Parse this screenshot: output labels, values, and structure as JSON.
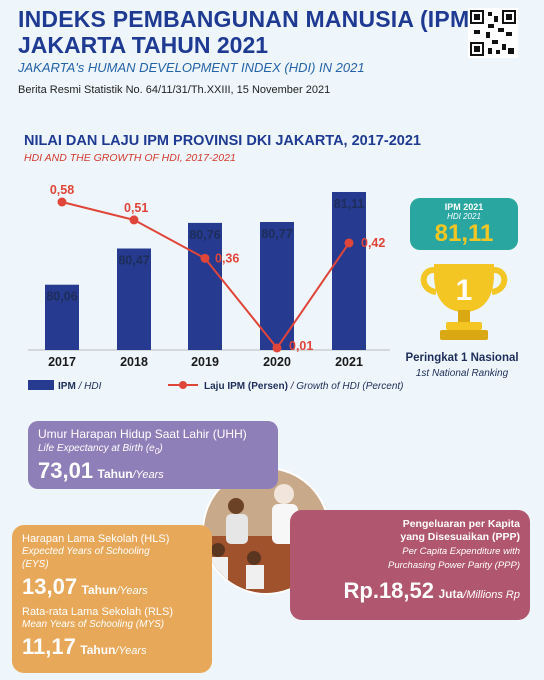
{
  "header": {
    "title_line1": "INDEKS PEMBANGUNAN MANUSIA (IPM)",
    "title_line2": "JAKARTA TAHUN 2021",
    "subtitle": "JAKARTA's HUMAN DEVELOPMENT INDEX (HDI) IN 2021",
    "release": "Berita Resmi Statistik No. 64/11/31/Th.XXIII, 15 November 2021"
  },
  "chart_data": {
    "type": "bar",
    "title": "NILAI DAN LAJU IPM PROVINSI DKI JAKARTA, 2017-2021",
    "subtitle": "HDI AND THE GROWTH OF HDI, 2017-2021",
    "categories": [
      "2017",
      "2018",
      "2019",
      "2020",
      "2021"
    ],
    "series": [
      {
        "name": "IPM / HDI",
        "type": "bar",
        "values": [
          80.06,
          80.47,
          80.76,
          80.77,
          81.11
        ],
        "labels": [
          "80,06",
          "80,47",
          "80,76",
          "80,77",
          "81,11"
        ],
        "color": "#263a8f"
      },
      {
        "name": "Laju IPM (Persen) / Growth of HDI (Percent)",
        "type": "line",
        "values": [
          0.58,
          0.51,
          0.36,
          0.01,
          0.42
        ],
        "labels": [
          "0,58",
          "0,51",
          "0,36",
          "0,01",
          "0,42"
        ],
        "color": "#e0453a"
      }
    ],
    "legend": {
      "bar_main": "IPM",
      "bar_italic": "/ HDI",
      "line_main": "Laju IPM (Persen)",
      "line_italic": "/ Growth of HDI (Percent)",
      "placement": "bottom"
    }
  },
  "highlight": {
    "label": "IPM 2021",
    "sublabel": "HDI 2021",
    "value": "81,11",
    "trophy_number": "1",
    "rank": "Peringkat 1 Nasional",
    "rank_en": "1st National Ranking",
    "trophy_color": "#f3c623"
  },
  "uhh": {
    "title": "Umur Harapan Hidup Saat Lahir (UHH)",
    "subtitle": "Life Expectancy at Birth (e",
    "subtitle_sub": "0",
    "subtitle_end": ")",
    "value": "73,01",
    "unit": "Tahun",
    "unit_en": "/Years",
    "color": "#8e7fb8"
  },
  "hls": {
    "title": "Harapan Lama Sekolah (HLS)",
    "subtitle": "Expected Years of Schooling",
    "subtitle2": "(EYS)",
    "value": "13,07",
    "unit": "Tahun",
    "unit_en": "/Years",
    "color": "#e8a85a"
  },
  "rls": {
    "title": "Rata-rata Lama Sekolah (RLS)",
    "subtitle": "Mean Years of Schooling (MYS)",
    "value": "11,17",
    "unit": "Tahun",
    "unit_en": "/Years"
  },
  "ppp": {
    "title": "Pengeluaran per Kapita",
    "title2": "yang Disesuaikan (PPP)",
    "subtitle": "Per Capita Expenditure with",
    "subtitle2": "Purchasing Power Parity (PPP)",
    "value": "Rp.18,52",
    "unit": "Juta",
    "unit_en": "/Millions Rp",
    "color": "#b0566e"
  }
}
